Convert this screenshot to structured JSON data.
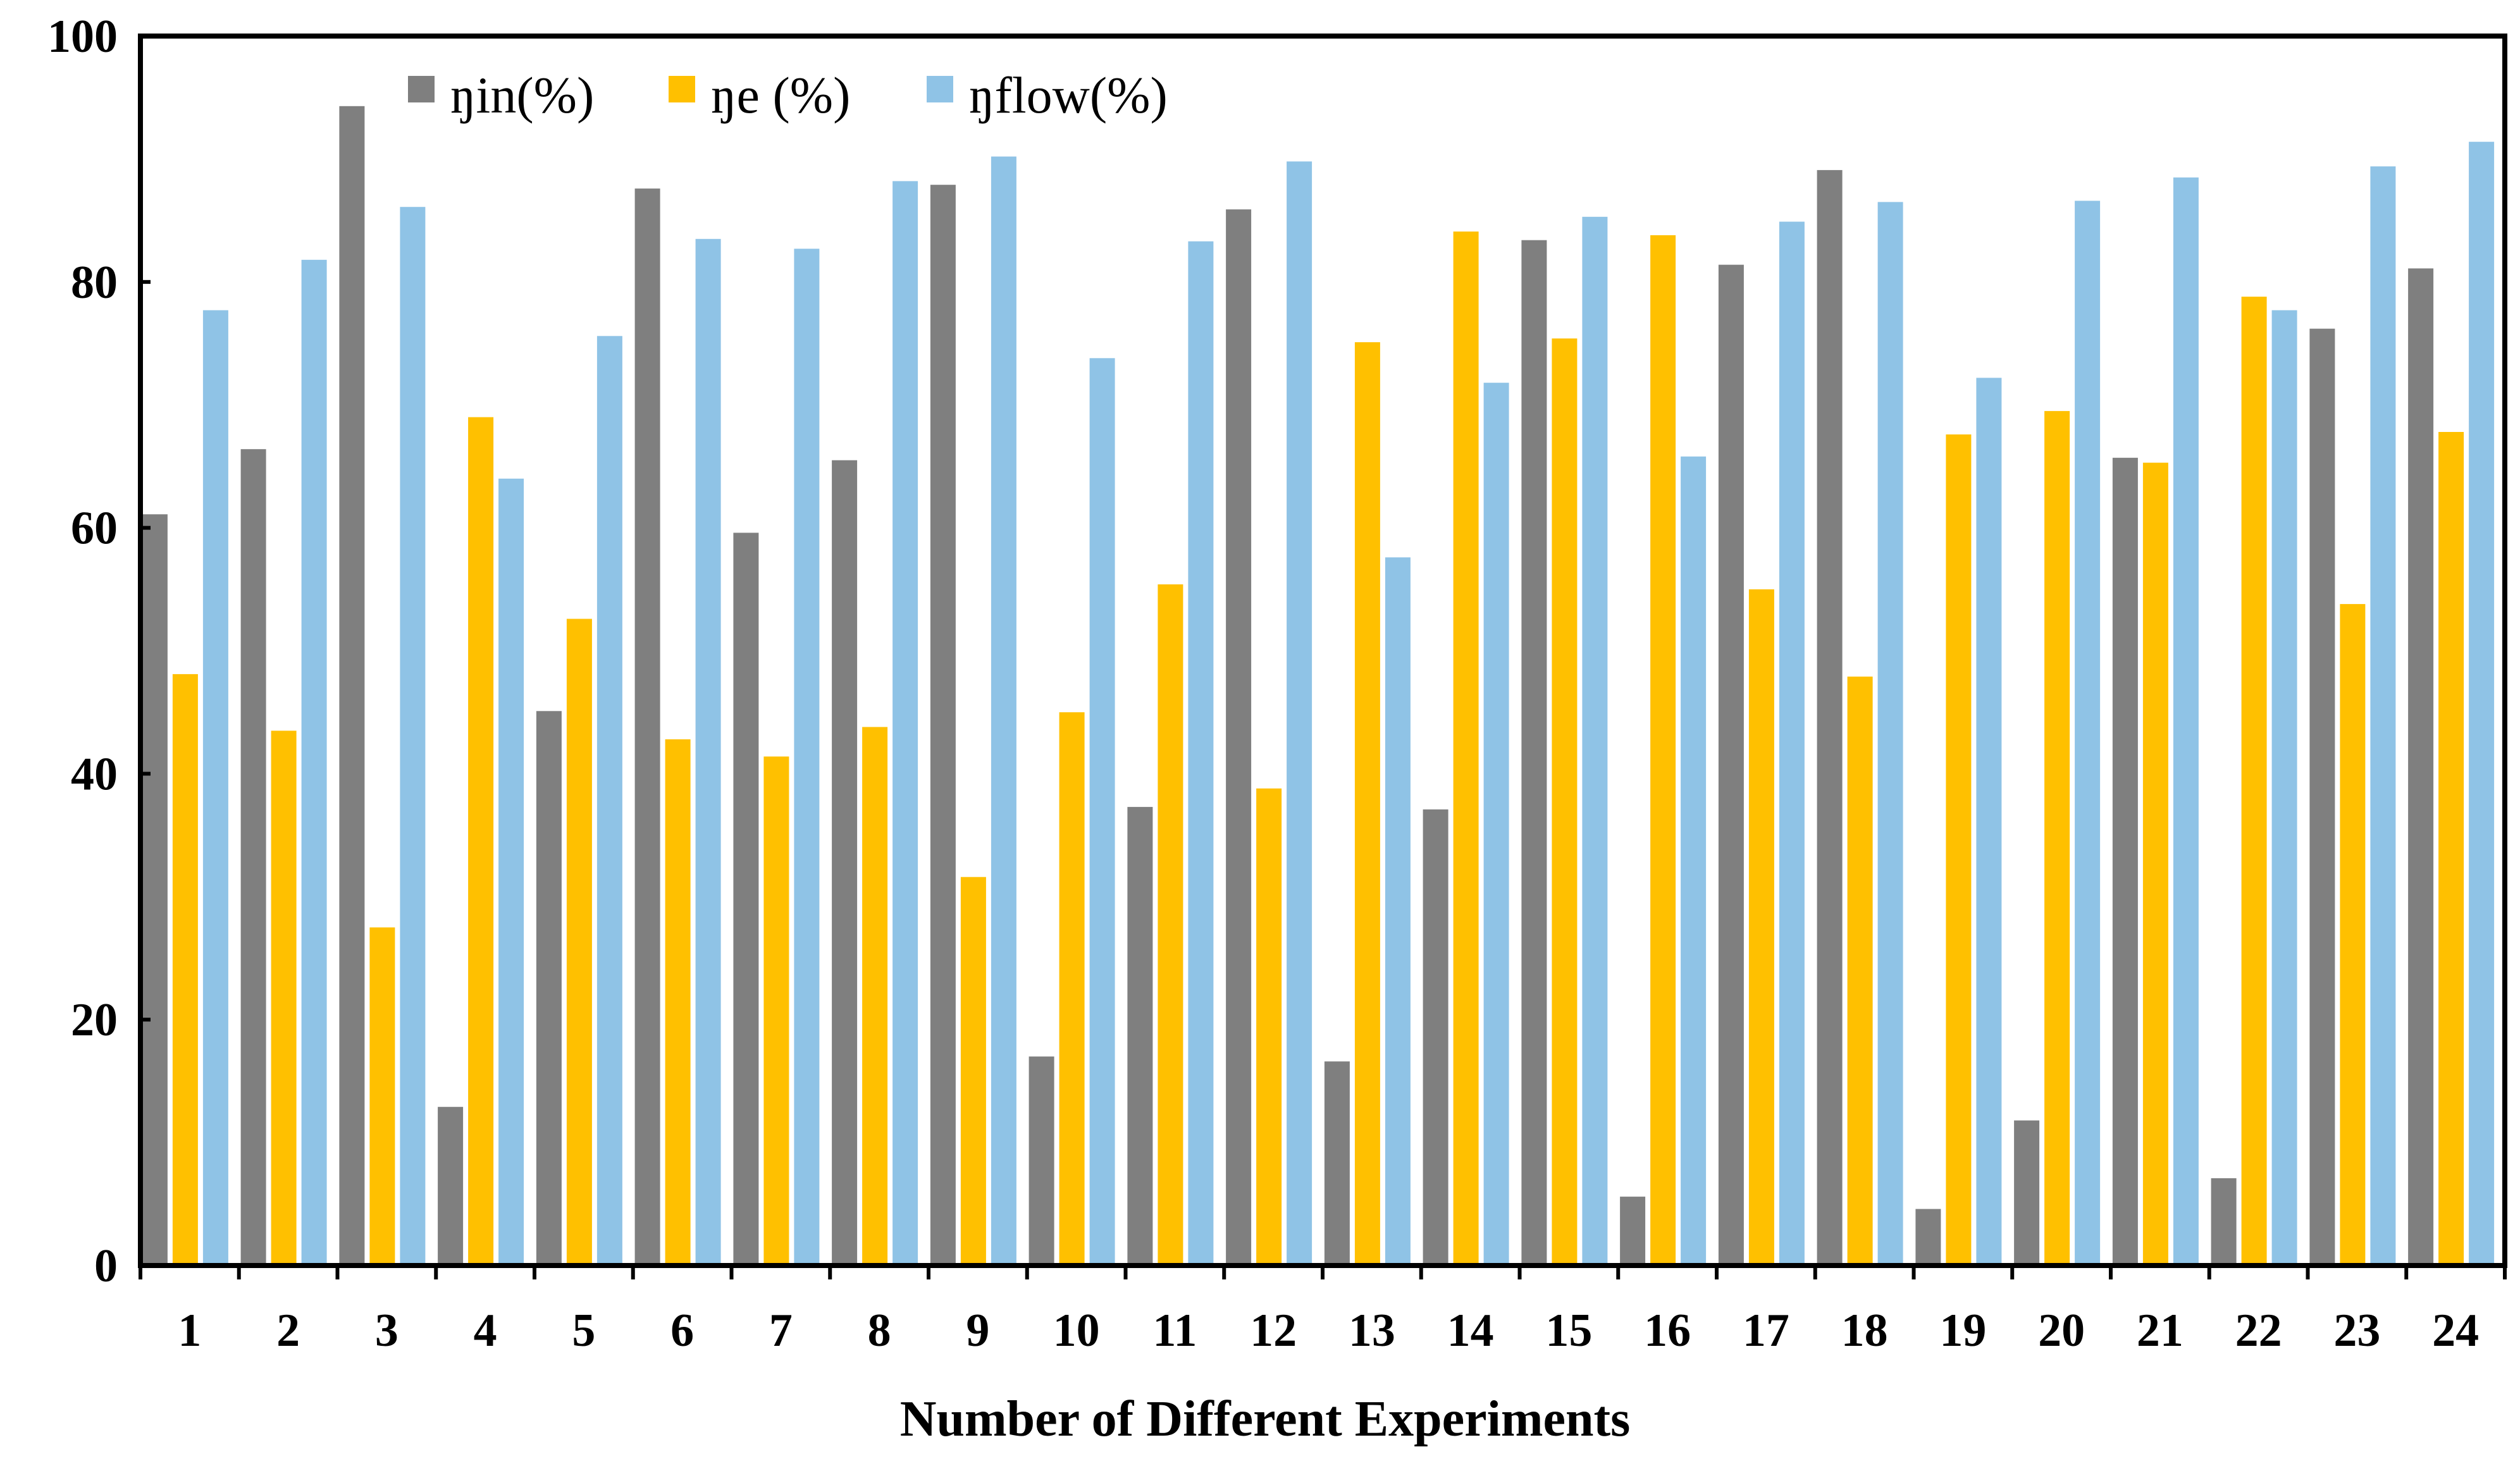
{
  "chart_data": {
    "type": "bar",
    "title": "",
    "xlabel": "Number of Different Experiments",
    "ylabel": "",
    "ylim": [
      0,
      100
    ],
    "yticks": [
      0,
      20,
      40,
      60,
      80,
      100
    ],
    "grid": false,
    "legend_position": "top-left",
    "categories": [
      "1",
      "2",
      "3",
      "4",
      "5",
      "6",
      "7",
      "8",
      "9",
      "10",
      "11",
      "12",
      "13",
      "14",
      "15",
      "16",
      "17",
      "18",
      "19",
      "20",
      "21",
      "22",
      "23",
      "24"
    ],
    "series": [
      {
        "name": "ŋin(%)",
        "color": "#7f7f7f",
        "values": [
          61.1,
          66.4,
          94.3,
          12.9,
          45.1,
          87.6,
          59.6,
          65.5,
          87.9,
          17.0,
          37.3,
          85.9,
          16.6,
          37.1,
          83.4,
          5.6,
          81.4,
          89.1,
          4.6,
          11.8,
          65.7,
          7.1,
          76.2,
          81.1
        ]
      },
      {
        "name": "ŋe (%)",
        "color": "#ffc000",
        "values": [
          48.1,
          43.5,
          27.5,
          69.0,
          52.6,
          42.8,
          41.4,
          43.8,
          31.6,
          45.0,
          55.4,
          38.8,
          75.1,
          84.1,
          75.4,
          83.8,
          55.0,
          47.9,
          67.6,
          69.5,
          65.3,
          78.8,
          53.8,
          67.8
        ]
      },
      {
        "name": "ŋflow(%)",
        "color": "#8fc3e6",
        "values": [
          77.7,
          81.8,
          86.1,
          64.0,
          75.6,
          83.5,
          82.7,
          88.2,
          90.2,
          73.8,
          83.3,
          89.8,
          57.6,
          71.8,
          85.3,
          65.8,
          84.9,
          86.5,
          72.2,
          86.6,
          88.5,
          77.7,
          89.4,
          91.4
        ]
      }
    ]
  }
}
